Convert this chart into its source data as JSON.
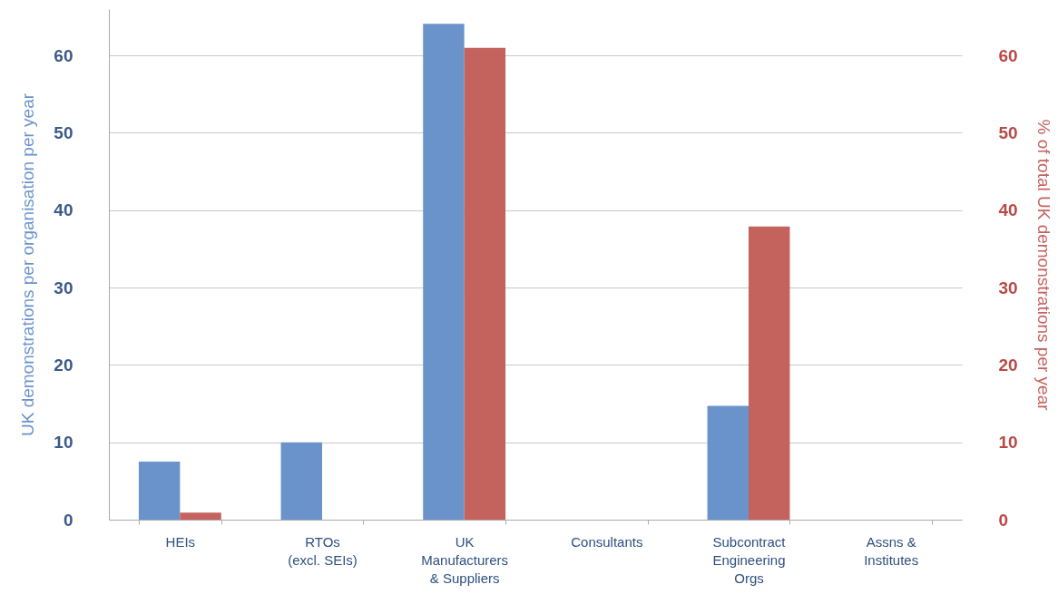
{
  "chart_data": {
    "type": "bar",
    "ylabel": "UK demonstrations per organisation per year",
    "y2label": "% of total UK demonstrations per year",
    "categories": [
      "HEIs",
      "RTOs\n(excl. SEIs)",
      "UK\nManufacturers\n& Suppliers",
      "Consultants",
      "Subcontract\nEngineering\nOrgs",
      "Assns &\nInstitutes"
    ],
    "series": [
      {
        "color": "#6a93cb",
        "values": [
          7.5,
          10.0,
          64.1,
          0,
          14.7,
          0
        ]
      },
      {
        "color": "#c4625e",
        "axis": "y2",
        "values": [
          0.9,
          0,
          61.0,
          0,
          37.9,
          0
        ]
      }
    ],
    "ylim": [
      0,
      66
    ],
    "yticks": [
      0,
      10,
      20,
      30,
      40,
      50,
      60
    ],
    "y2lim": [
      0,
      66
    ],
    "y2ticks": [
      0,
      10,
      20,
      30,
      40,
      50,
      60
    ],
    "grid": "y"
  }
}
